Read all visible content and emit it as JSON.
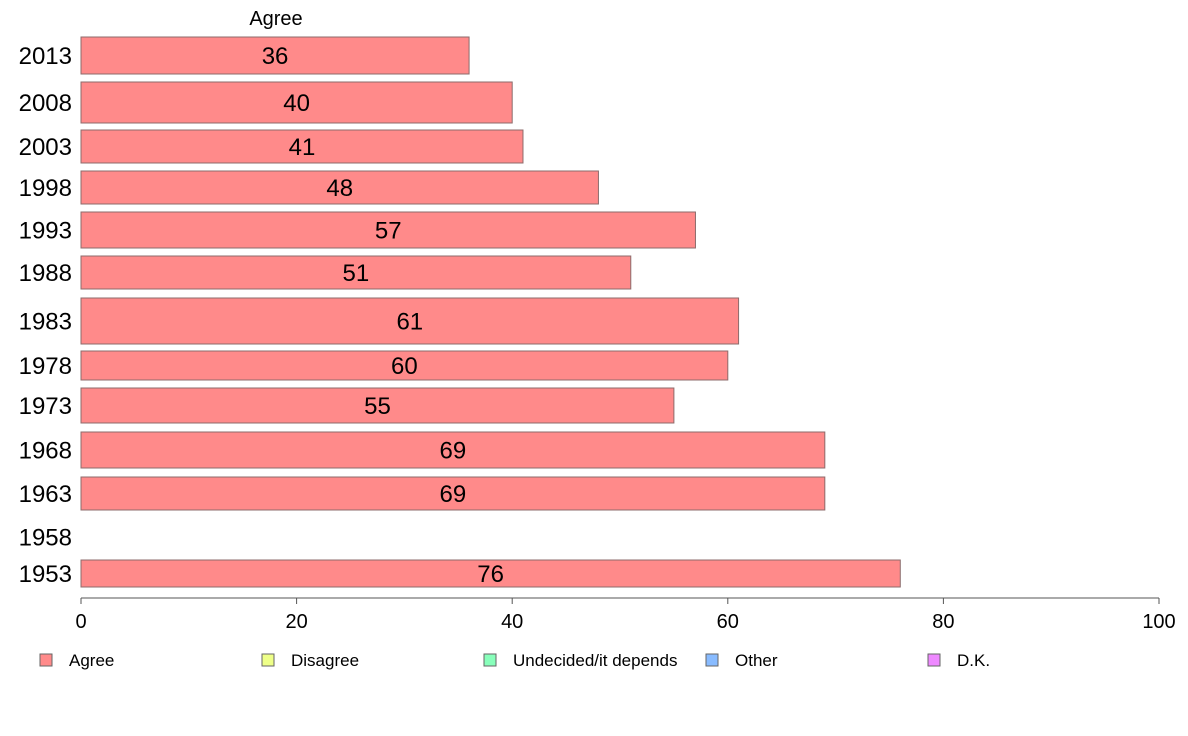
{
  "chart_data": {
    "type": "bar",
    "orientation": "horizontal",
    "title": "",
    "header": "Agree",
    "xlabel": "",
    "ylabel": "",
    "xlim": [
      0,
      100
    ],
    "xticks": [
      0,
      20,
      40,
      60,
      80,
      100
    ],
    "grid": false,
    "legend_position": "bottom",
    "categories": [
      "2013",
      "2008",
      "2003",
      "1998",
      "1993",
      "1988",
      "1983",
      "1978",
      "1973",
      "1968",
      "1963",
      "1958",
      "1953"
    ],
    "series": [
      {
        "name": "Agree",
        "color": "#ff8a8a",
        "values": [
          36,
          40,
          41,
          48,
          57,
          51,
          61,
          60,
          55,
          69,
          69,
          null,
          76
        ]
      }
    ],
    "legend": [
      {
        "label": "Agree",
        "color": "#ff8a8a"
      },
      {
        "label": "Disagree",
        "color": "#eeff88"
      },
      {
        "label": "Undecided/it depends",
        "color": "#88ffbb"
      },
      {
        "label": "Other",
        "color": "#88bbff"
      },
      {
        "label": "D.K.",
        "color": "#ee88ff"
      }
    ]
  }
}
